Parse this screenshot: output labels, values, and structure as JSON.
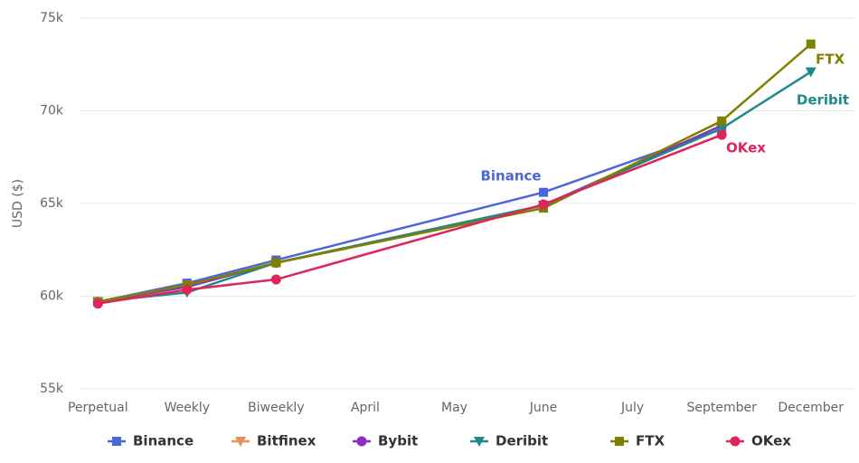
{
  "chart_data": {
    "type": "line",
    "y_label": "USD ($)",
    "categories": [
      "Perpetual",
      "Weekly",
      "Biweekly",
      "April",
      "May",
      "June",
      "July",
      "September",
      "December"
    ],
    "ylim": [
      55000,
      75000
    ],
    "yticks": [
      {
        "value": 55000,
        "label": "55k"
      },
      {
        "value": 60000,
        "label": "60k"
      },
      {
        "value": 65000,
        "label": "65k"
      },
      {
        "value": 70000,
        "label": "70k"
      },
      {
        "value": 75000,
        "label": "75k"
      }
    ],
    "grid": true,
    "connect_nulls": true,
    "legend": "bottom",
    "series": [
      {
        "name": "Binance",
        "color": "#4a67d6",
        "marker": "square",
        "values": [
          59700,
          60700,
          61950,
          null,
          null,
          65600,
          null,
          69000,
          null
        ]
      },
      {
        "name": "Bitfinex",
        "color": "#e8925a",
        "marker": "triangle-down",
        "values": [
          59700,
          60600,
          61800,
          null,
          null,
          64900,
          null,
          69200,
          null
        ]
      },
      {
        "name": "Bybit",
        "color": "#8a2fc0",
        "marker": "circle",
        "values": [
          59700,
          60500,
          61800,
          null,
          null,
          64900,
          null,
          69200,
          null
        ]
      },
      {
        "name": "Deribit",
        "color": "#1f8a8a",
        "marker": "triangle-down",
        "values": [
          59700,
          60200,
          61800,
          null,
          null,
          64900,
          null,
          69050,
          72100
        ]
      },
      {
        "name": "FTX",
        "color": "#808000",
        "marker": "square",
        "values": [
          59700,
          60600,
          61800,
          null,
          null,
          64750,
          null,
          69450,
          73600
        ]
      },
      {
        "name": "OKex",
        "color": "#e0245a",
        "marker": "circle",
        "values": [
          59600,
          60350,
          60900,
          null,
          null,
          64950,
          null,
          68700,
          null
        ]
      }
    ]
  }
}
